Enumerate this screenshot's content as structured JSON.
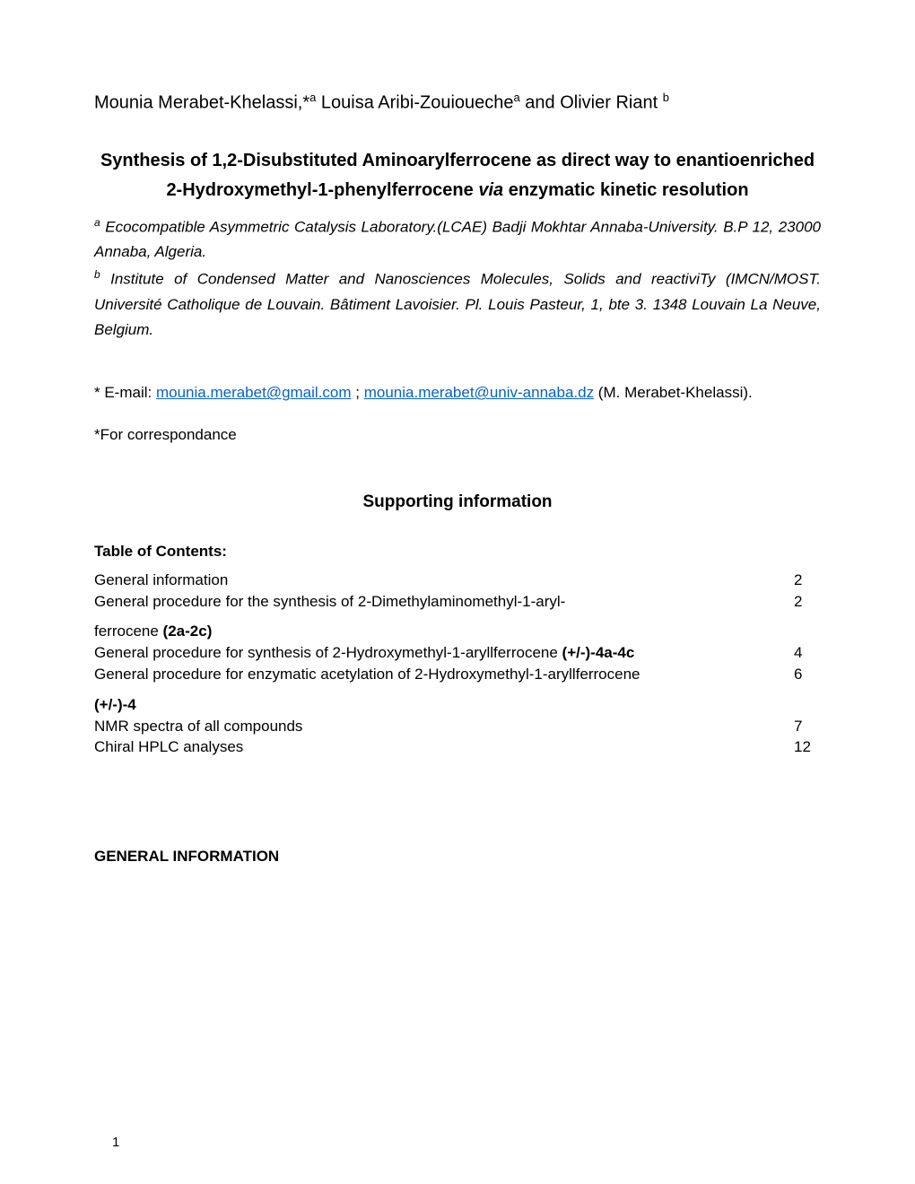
{
  "colors": {
    "text": "#000000",
    "link": "#0563c1",
    "background": "#ffffff"
  },
  "fonts": {
    "body_family": "Arial",
    "body_size_pt": 12,
    "title_size_pt": 14,
    "sup_size_pt": 9,
    "pagenum_size_pt": 11
  },
  "authors": {
    "a1_name": "Mounia Merabet-Khelassi,*",
    "a1_sup": "a",
    "a2_name": " Louisa Aribi-Zouioueche",
    "a2_sup": "a",
    "a2_join": " and Olivier Riant ",
    "a3_sup": "b"
  },
  "title": {
    "line": "Synthesis of 1,2-Disubstituted Aminoarylferrocene as direct way to enantioenriched  2-Hydroxymethyl-1-phenylferrocene ",
    "italic": "via",
    "tail": " enzymatic kinetic resolution"
  },
  "affiliations": {
    "a_sup": "a",
    "a_text": " Ecocompatible Asymmetric Catalysis Laboratory.(LCAE) Badji Mokhtar Annaba-University. B.P 12, 23000 Annaba, Algeria.",
    "b_sup": "b",
    "b_text": " Institute of Condensed Matter and Nanosciences Molecules, Solids and reactiviTy (IMCN/MOST. Université Catholique de Louvain. Bâtiment Lavoisier. Pl. Louis Pasteur, 1, bte 3. 1348 Louvain La Neuve, Belgium."
  },
  "email": {
    "prefix": "* E-mail: ",
    "email1": "mounia.merabet@gmail.com",
    "sep": " ; ",
    "email2": "mounia.merabet@univ-annaba.dz",
    "suffix": "  (M. Merabet-Khelassi)."
  },
  "correspondence": "*For correspondance",
  "si_heading": "Supporting information",
  "toc_heading": "Table of Contents:",
  "toc": {
    "i1_label": "General information",
    "i1_page": "2",
    "i2_label1": "General procedure for the synthesis of 2-Dimethylaminomethyl-1-aryl-",
    "i2_page": "2",
    "i2_label2_pre": "ferrocene ",
    "i2_label2_bold": "(2a-2c)",
    "i3_label_pre": "General procedure for synthesis of 2-Hydroxymethyl-1-aryllferrocene ",
    "i3_label_bold": "(+/-)-4a-4c",
    "i3_page": "4",
    "i4_label": "General procedure for enzymatic acetylation of 2-Hydroxymethyl-1-aryllferrocene",
    "i4_page": "6",
    "i4_bold": "(+/-)-4",
    "i5_label": "NMR spectra of all compounds",
    "i5_page": "7",
    "i6_label": "Chiral HPLC analyses",
    "i6_page": "12"
  },
  "general_info": "GENERAL INFORMATION",
  "page_number": "1"
}
